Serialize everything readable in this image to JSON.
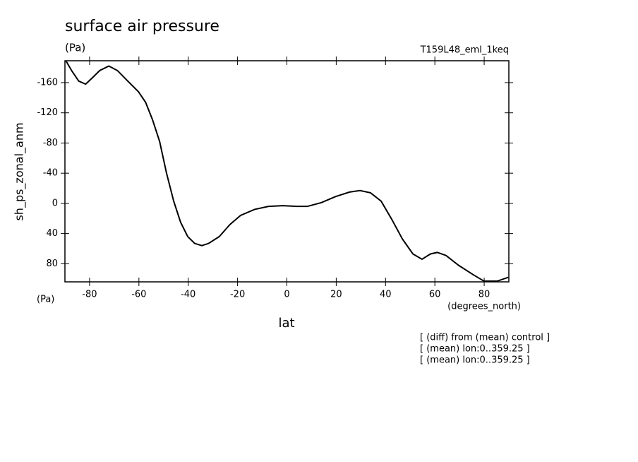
{
  "chart_data": {
    "type": "line",
    "title": "surface air pressure",
    "y_units": "(Pa)",
    "subtitle": "T159L48_eml_1keq",
    "ylabel": "sh_ps_zonal_anm",
    "y_units_bottom": "(Pa)",
    "x_units": "(degrees_north)",
    "xlabel": "lat",
    "notes": [
      "[ (diff) from (mean) control ]",
      "[ (mean) lon:0..359.25 ]",
      "[ (mean) lon:0..359.25 ]"
    ],
    "xlim": [
      -90,
      90
    ],
    "xticks": [
      -80,
      -60,
      -40,
      -20,
      0,
      20,
      40,
      60,
      80
    ],
    "ylim": [
      104,
      -189
    ],
    "yticks": [
      -160,
      -120,
      -80,
      -40,
      0,
      40,
      80
    ],
    "series": [
      {
        "color": "#000000",
        "x": [
          -89.6,
          -87.3,
          -84.4,
          -81.6,
          -78.7,
          -75.9,
          -72.2,
          -68.7,
          -64.5,
          -60.2,
          -57.3,
          -54.5,
          -51.6,
          -48.8,
          -45.9,
          -43.1,
          -40.2,
          -37.4,
          -34.5,
          -31.7,
          -27.4,
          -23.1,
          -18.8,
          -13.1,
          -7.4,
          -1.7,
          4.0,
          8.3,
          14.0,
          19.7,
          25.4,
          29.7,
          33.9,
          38.2,
          42.5,
          46.8,
          51.1,
          54.8,
          58.2,
          61.0,
          64.5,
          69.6,
          75.3,
          79.9,
          85.3,
          89.8
        ],
        "values": [
          -189,
          -176,
          -162,
          -158,
          -167,
          -176,
          -182,
          -176,
          -162,
          -148,
          -134,
          -111,
          -82,
          -40,
          -3,
          25,
          44,
          53,
          56,
          53,
          44,
          28,
          16,
          8,
          4,
          3,
          4,
          4,
          -1,
          -9,
          -15,
          -17,
          -14,
          -3,
          21,
          47,
          67,
          74,
          67,
          65,
          69,
          82,
          94,
          103,
          103,
          98
        ]
      }
    ]
  }
}
